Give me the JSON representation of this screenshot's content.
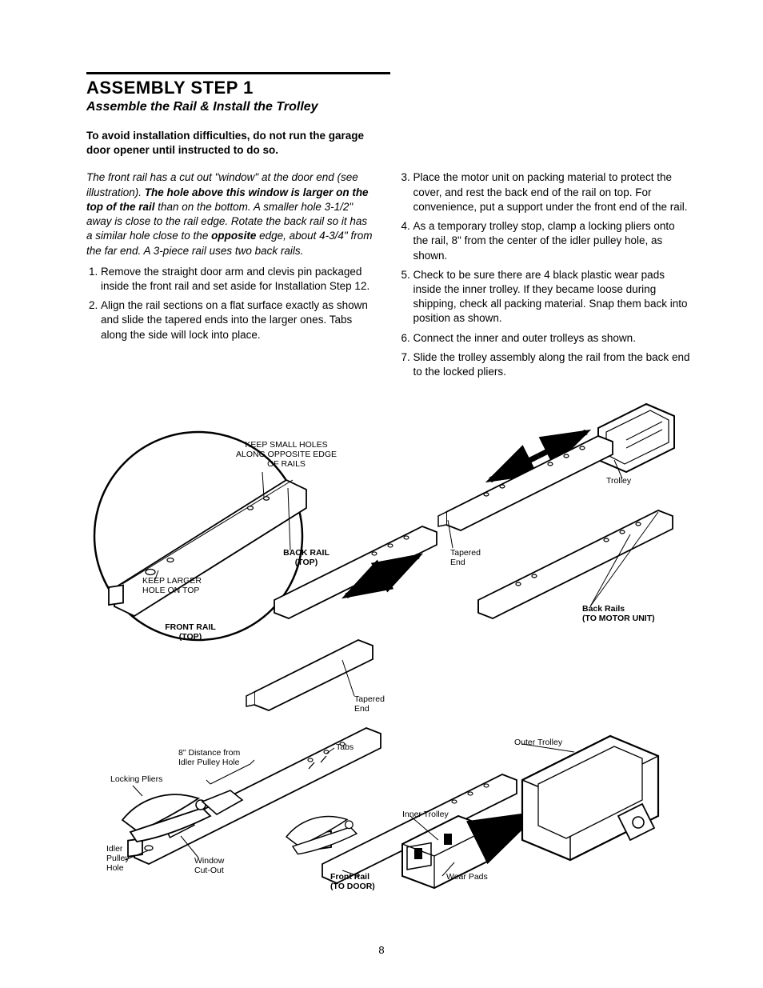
{
  "page_number": "8",
  "header": {
    "title": "ASSEMBLY STEP 1",
    "subtitle": "Assemble the Rail & Install the Trolley"
  },
  "intro_bold": "To avoid installation difficulties, do not run the garage door opener until instructed to do so.",
  "italic_para": {
    "pre": "The front rail has a cut out \"window\" at the door end (see illustration). ",
    "bold1": "The hole above this window is larger on the top of the rail",
    "mid1": " than on the bottom. A smaller hole 3-1/2\" away is close to the rail edge. Rotate the back rail so it has a similar hole close to the ",
    "bold2": "opposite",
    "post": " edge, about 4-3/4\" from the far end. A 3-piece rail uses two back rails."
  },
  "left_steps": [
    "Remove the straight door arm and clevis pin packaged inside the front rail and set aside for Installation Step 12.",
    "Align the rail sections on a flat surface exactly as shown and slide the tapered ends into the larger ones. Tabs along the side will lock into place."
  ],
  "right_steps": [
    "Place the motor unit on packing material to protect the cover, and rest the back end of the rail on top. For convenience, put a support under the front end of the rail.",
    "As a temporary trolley stop, clamp a locking pliers onto the rail, 8\" from the center of the idler pulley hole, as shown.",
    "Check to be sure there are 4 black plastic wear pads inside the inner trolley. If they became loose during shipping, check all packing material. Snap them back into position as shown.",
    "Connect the inner and outer trolleys as shown.",
    "Slide the trolley assembly along the rail from the back end to the locked pliers."
  ],
  "diagram": {
    "type": "technical-illustration",
    "line_color": "#000000",
    "fill_color": "#ffffff",
    "label_fontsize": 10.5,
    "labels": {
      "keep_small_holes": "KEEP SMALL HOLES\nALONG OPPOSITE EDGE\nOF RAILS",
      "keep_larger_hole": "KEEP LARGER\nHOLE ON TOP",
      "front_rail_top": "FRONT RAIL\n(TOP)",
      "back_rail_top": "BACK RAIL\n(TOP)",
      "trolley": "Trolley",
      "tapered_end_upper": "Tapered\nEnd",
      "tapered_end_lower": "Tapered\nEnd",
      "back_rails_motor": "Back Rails\n(TO MOTOR UNIT)",
      "tabs": "Tabs",
      "distance": "8\" Distance from\nIdler Pulley Hole",
      "locking_pliers": "Locking Pliers",
      "idler_pulley_hole": "Idler\nPulley\nHole",
      "window_cutout": "Window\nCut-Out",
      "front_rail_door": "Front Rail\n(TO DOOR)",
      "outer_trolley": "Outer Trolley",
      "inner_trolley": "Inner Trolley",
      "wear_pads": "Wear Pads"
    }
  }
}
